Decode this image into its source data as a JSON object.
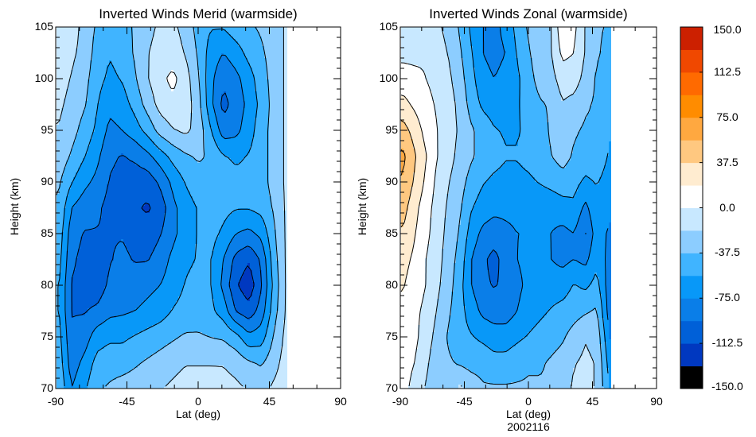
{
  "chart_data": [
    {
      "type": "heatmap",
      "subtype": "filled-contour",
      "title": "Inverted Winds Merid (warmside)",
      "xlabel": "Lat (deg)",
      "ylabel": "Height (km)",
      "xlim": [
        -90,
        90
      ],
      "ylim": [
        70,
        105
      ],
      "xticks": [
        -90,
        -45,
        0,
        45,
        90
      ],
      "xtick_labels": [
        "-90",
        "-45",
        "0",
        "45",
        "90"
      ],
      "yticks": [
        70,
        75,
        80,
        85,
        90,
        95,
        100,
        105
      ],
      "ytick_labels": [
        "70",
        "75",
        "80",
        "85",
        "90",
        "95",
        "100",
        "105"
      ],
      "data_extent_lat": [
        -88,
        56
      ],
      "x": [
        -88,
        -80,
        -72,
        -64,
        -56,
        -48,
        -40,
        -32,
        -24,
        -16,
        -8,
        0,
        8,
        16,
        24,
        32,
        40,
        48,
        56
      ],
      "y": [
        70,
        72.5,
        75,
        77.5,
        80,
        82.5,
        85,
        87.5,
        90,
        92.5,
        95,
        97.5,
        100,
        102.5,
        105
      ],
      "z": [
        [
          -40,
          -75,
          -60,
          -40,
          -35,
          -30,
          -28,
          -25,
          -20,
          -15,
          -10,
          -10,
          -10,
          -12,
          -15,
          -20,
          -25,
          -15,
          -10
        ],
        [
          -45,
          -85,
          -70,
          -50,
          -45,
          -45,
          -40,
          -35,
          -30,
          -25,
          -20,
          -20,
          -20,
          -20,
          -25,
          -35,
          -40,
          -25,
          -10
        ],
        [
          -50,
          -90,
          -85,
          -65,
          -60,
          -60,
          -55,
          -50,
          -45,
          -40,
          -35,
          -35,
          -38,
          -40,
          -50,
          -70,
          -65,
          -35,
          -12
        ],
        [
          -55,
          -95,
          -95,
          -90,
          -80,
          -78,
          -75,
          -70,
          -65,
          -55,
          -50,
          -48,
          -52,
          -65,
          -95,
          -105,
          -85,
          -45,
          -15
        ],
        [
          -55,
          -95,
          -100,
          -105,
          -90,
          -85,
          -85,
          -80,
          -75,
          -65,
          -55,
          -50,
          -55,
          -80,
          -110,
          -125,
          -95,
          -50,
          -15
        ],
        [
          -50,
          -90,
          -100,
          -110,
          -95,
          -90,
          -95,
          -95,
          -85,
          -70,
          -60,
          -55,
          -55,
          -75,
          -100,
          -110,
          -90,
          -45,
          -15
        ],
        [
          -45,
          -85,
          -95,
          -95,
          -95,
          -95,
          -100,
          -105,
          -95,
          -80,
          -65,
          -55,
          -50,
          -60,
          -75,
          -80,
          -70,
          -40,
          -15
        ],
        [
          -40,
          -75,
          -85,
          -90,
          -100,
          -105,
          -110,
          -115,
          -105,
          -80,
          -65,
          -55,
          -45,
          -50,
          -55,
          -55,
          -50,
          -35,
          -15
        ],
        [
          -35,
          -55,
          -70,
          -80,
          -95,
          -100,
          -105,
          -105,
          -90,
          -70,
          -55,
          -45,
          -40,
          -45,
          -50,
          -50,
          -45,
          -30,
          -15
        ],
        [
          -25,
          -40,
          -55,
          -70,
          -90,
          -95,
          -90,
          -80,
          -65,
          -50,
          -40,
          -35,
          -40,
          -55,
          -60,
          -55,
          -45,
          -30,
          -15
        ],
        [
          -20,
          -30,
          -45,
          -60,
          -80,
          -75,
          -65,
          -50,
          -30,
          -20,
          -15,
          -25,
          -55,
          -85,
          -80,
          -65,
          -45,
          -30,
          -15
        ],
        [
          -15,
          -25,
          -35,
          -55,
          -70,
          -65,
          -50,
          -30,
          -12,
          -5,
          -8,
          -30,
          -70,
          -100,
          -85,
          -70,
          -50,
          -30,
          -15
        ],
        [
          -10,
          -20,
          -30,
          -50,
          -60,
          -55,
          -40,
          -20,
          -5,
          5,
          -10,
          -35,
          -70,
          -90,
          -80,
          -65,
          -45,
          -30,
          -15
        ],
        [
          -5,
          -15,
          -25,
          -45,
          -55,
          -50,
          -35,
          -20,
          -10,
          -10,
          -20,
          -40,
          -65,
          -75,
          -65,
          -50,
          -40,
          -30,
          -15
        ],
        [
          -5,
          -10,
          -25,
          -40,
          -50,
          -45,
          -35,
          -25,
          -15,
          -15,
          -25,
          -45,
          -55,
          -55,
          -45,
          -40,
          -35,
          -30,
          -15
        ]
      ]
    },
    {
      "type": "heatmap",
      "subtype": "filled-contour",
      "title": "Inverted Winds Zonal (warmside)",
      "xlabel": "Lat (deg)",
      "xlabel2": "2002116",
      "ylabel": "Height (km)",
      "xlim": [
        -90,
        90
      ],
      "ylim": [
        70,
        105
      ],
      "xticks": [
        -90,
        -45,
        0,
        45,
        90
      ],
      "xtick_labels": [
        "-90",
        "-45",
        "0",
        "45",
        "90"
      ],
      "yticks": [
        70,
        75,
        80,
        85,
        90,
        95,
        100,
        105
      ],
      "ytick_labels": [
        "70",
        "75",
        "80",
        "85",
        "90",
        "95",
        "100",
        "105"
      ],
      "data_extent_lat": [
        -88,
        58
      ],
      "x": [
        -88,
        -80,
        -72,
        -64,
        -56,
        -48,
        -40,
        -32,
        -24,
        -16,
        -8,
        0,
        8,
        16,
        24,
        32,
        40,
        48,
        58
      ],
      "y": [
        70,
        72.5,
        75,
        77.5,
        80,
        82.5,
        85,
        87.5,
        90,
        92.5,
        95,
        97.5,
        100,
        102.5,
        105
      ],
      "z": [
        [
          10,
          -10,
          -20,
          -35,
          -30,
          -15,
          -25,
          -35,
          -35,
          -35,
          -35,
          -35,
          -35,
          -35,
          -30,
          -15,
          -15,
          -20,
          -60
        ],
        [
          12,
          0,
          -15,
          -30,
          -35,
          -40,
          -45,
          -45,
          -50,
          -50,
          -45,
          -40,
          -40,
          -35,
          -30,
          -20,
          -15,
          -20,
          -70
        ],
        [
          15,
          5,
          -10,
          -25,
          -40,
          -50,
          -55,
          -60,
          -65,
          -65,
          -60,
          -55,
          -50,
          -45,
          -40,
          -30,
          -20,
          -25,
          -80
        ],
        [
          15,
          5,
          -5,
          -20,
          -35,
          -50,
          -65,
          -80,
          -85,
          -85,
          -75,
          -65,
          -60,
          -55,
          -50,
          -45,
          -40,
          -35,
          -90
        ],
        [
          20,
          10,
          0,
          -15,
          -30,
          -50,
          -75,
          -90,
          -95,
          -90,
          -80,
          -70,
          -65,
          -65,
          -65,
          -55,
          -60,
          -50,
          -90
        ],
        [
          25,
          15,
          0,
          -12,
          -28,
          -45,
          -75,
          -90,
          -100,
          -85,
          -75,
          -70,
          -70,
          -75,
          -80,
          -75,
          -80,
          -60,
          -85
        ],
        [
          35,
          20,
          5,
          -10,
          -25,
          -40,
          -65,
          -80,
          -85,
          -80,
          -75,
          -75,
          -75,
          -75,
          -80,
          -75,
          -95,
          -65,
          -80
        ],
        [
          45,
          25,
          8,
          -8,
          -22,
          -35,
          -55,
          -65,
          -70,
          -70,
          -70,
          -72,
          -72,
          -70,
          -65,
          -60,
          -80,
          -60,
          -70
        ],
        [
          55,
          35,
          15,
          -5,
          -18,
          -30,
          -45,
          -55,
          -60,
          -62,
          -62,
          -60,
          -55,
          -50,
          -45,
          -50,
          -60,
          -55,
          -65
        ],
        [
          60,
          40,
          20,
          0,
          -12,
          -25,
          -35,
          -45,
          -50,
          -55,
          -55,
          -50,
          -45,
          -38,
          -30,
          -40,
          -45,
          -45,
          -60
        ],
        [
          45,
          30,
          12,
          0,
          -10,
          -22,
          -35,
          -45,
          -55,
          -58,
          -58,
          -52,
          -45,
          -35,
          -30,
          -35,
          -40,
          -40,
          -55
        ],
        [
          25,
          15,
          5,
          -2,
          -10,
          -25,
          -45,
          -60,
          -65,
          -62,
          -58,
          -50,
          -40,
          -35,
          -20,
          -25,
          -35,
          -40,
          -55
        ],
        [
          8,
          5,
          0,
          -5,
          -15,
          -30,
          -50,
          -70,
          -75,
          -70,
          -60,
          -45,
          -30,
          -25,
          -10,
          -10,
          -25,
          -40,
          -50
        ],
        [
          -5,
          -5,
          -2,
          -10,
          -20,
          -35,
          -55,
          -75,
          -80,
          -75,
          -55,
          -40,
          -25,
          -20,
          5,
          0,
          -20,
          -35,
          -45
        ],
        [
          -10,
          -10,
          -5,
          -15,
          -25,
          -40,
          -60,
          -75,
          -80,
          -70,
          -50,
          -35,
          -20,
          -20,
          15,
          5,
          -20,
          -35,
          -40
        ]
      ]
    }
  ],
  "colorbar": {
    "levels": [
      -150,
      -131.25,
      -112.5,
      -93.75,
      -75,
      -56.25,
      -37.5,
      -18.75,
      0,
      18.75,
      37.5,
      56.25,
      75,
      93.75,
      112.5,
      131.25,
      150
    ],
    "colors": [
      "#000000",
      "#0038c0",
      "#0060d8",
      "#0a7ee8",
      "#0898f8",
      "#40b4ff",
      "#8ccdff",
      "#c8e8ff",
      "#ffffff",
      "#ffecd0",
      "#ffc880",
      "#ffa840",
      "#ff8c00",
      "#ff6a00",
      "#f04800",
      "#cc2000"
    ],
    "tick_values": [
      150.0,
      112.5,
      75.0,
      37.5,
      0.0,
      -37.5,
      -75.0,
      -112.5,
      -150.0
    ],
    "tick_labels": [
      "150.0",
      "112.5",
      "75.0",
      "37.5",
      "0.0",
      "-37.5",
      "-75.0",
      "-112.5",
      "-150.0"
    ]
  }
}
